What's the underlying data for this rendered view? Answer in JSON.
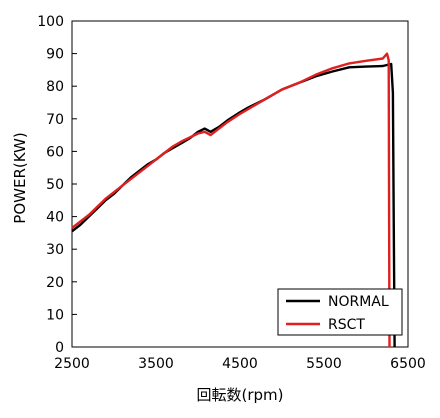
{
  "chart_data": {
    "type": "line",
    "xlabel": "回転数(rpm)",
    "ylabel": "POWER(KW)",
    "xlim": [
      2500,
      6500
    ],
    "ylim": [
      0,
      100
    ],
    "x_ticks": [
      2500,
      3500,
      4500,
      5500,
      6500
    ],
    "y_ticks": [
      0,
      10,
      20,
      30,
      40,
      50,
      60,
      70,
      80,
      90,
      100
    ],
    "grid": false,
    "legend_position": "bottom-right",
    "series": [
      {
        "name": "NORMAL",
        "color": "#000000",
        "points": [
          [
            2500,
            35.5
          ],
          [
            2600,
            37.5
          ],
          [
            2700,
            40
          ],
          [
            2800,
            42.5
          ],
          [
            2900,
            45
          ],
          [
            3000,
            47
          ],
          [
            3100,
            49.5
          ],
          [
            3200,
            52
          ],
          [
            3300,
            54
          ],
          [
            3400,
            56
          ],
          [
            3500,
            57.5
          ],
          [
            3600,
            59.5
          ],
          [
            3700,
            61
          ],
          [
            3800,
            62.5
          ],
          [
            3900,
            64
          ],
          [
            4000,
            66
          ],
          [
            4080,
            67
          ],
          [
            4150,
            66
          ],
          [
            4250,
            67.5
          ],
          [
            4350,
            69.5
          ],
          [
            4500,
            72
          ],
          [
            4600,
            73.5
          ],
          [
            4800,
            76
          ],
          [
            5000,
            79
          ],
          [
            5200,
            81
          ],
          [
            5400,
            83
          ],
          [
            5600,
            84.5
          ],
          [
            5800,
            85.8
          ],
          [
            6000,
            86
          ],
          [
            6200,
            86.2
          ],
          [
            6300,
            86.8
          ],
          [
            6320,
            78
          ],
          [
            6330,
            40
          ],
          [
            6340,
            0
          ]
        ]
      },
      {
        "name": "RSCT",
        "color": "#e02020",
        "points": [
          [
            2500,
            36.5
          ],
          [
            2600,
            38.5
          ],
          [
            2700,
            40.5
          ],
          [
            2800,
            43
          ],
          [
            2900,
            45.5
          ],
          [
            3000,
            47.5
          ],
          [
            3100,
            49.5
          ],
          [
            3200,
            51.5
          ],
          [
            3300,
            53.5
          ],
          [
            3400,
            55.5
          ],
          [
            3500,
            57.5
          ],
          [
            3600,
            59.5
          ],
          [
            3700,
            61.5
          ],
          [
            3800,
            63
          ],
          [
            4000,
            65.5
          ],
          [
            4080,
            66
          ],
          [
            4150,
            65
          ],
          [
            4250,
            67
          ],
          [
            4350,
            69
          ],
          [
            4500,
            71.5
          ],
          [
            4600,
            73
          ],
          [
            4800,
            76
          ],
          [
            5000,
            79
          ],
          [
            5200,
            81
          ],
          [
            5400,
            83.5
          ],
          [
            5600,
            85.5
          ],
          [
            5800,
            87
          ],
          [
            6000,
            87.8
          ],
          [
            6200,
            88.5
          ],
          [
            6250,
            90
          ],
          [
            6270,
            88
          ],
          [
            6275,
            40
          ],
          [
            6280,
            0
          ]
        ]
      }
    ]
  }
}
